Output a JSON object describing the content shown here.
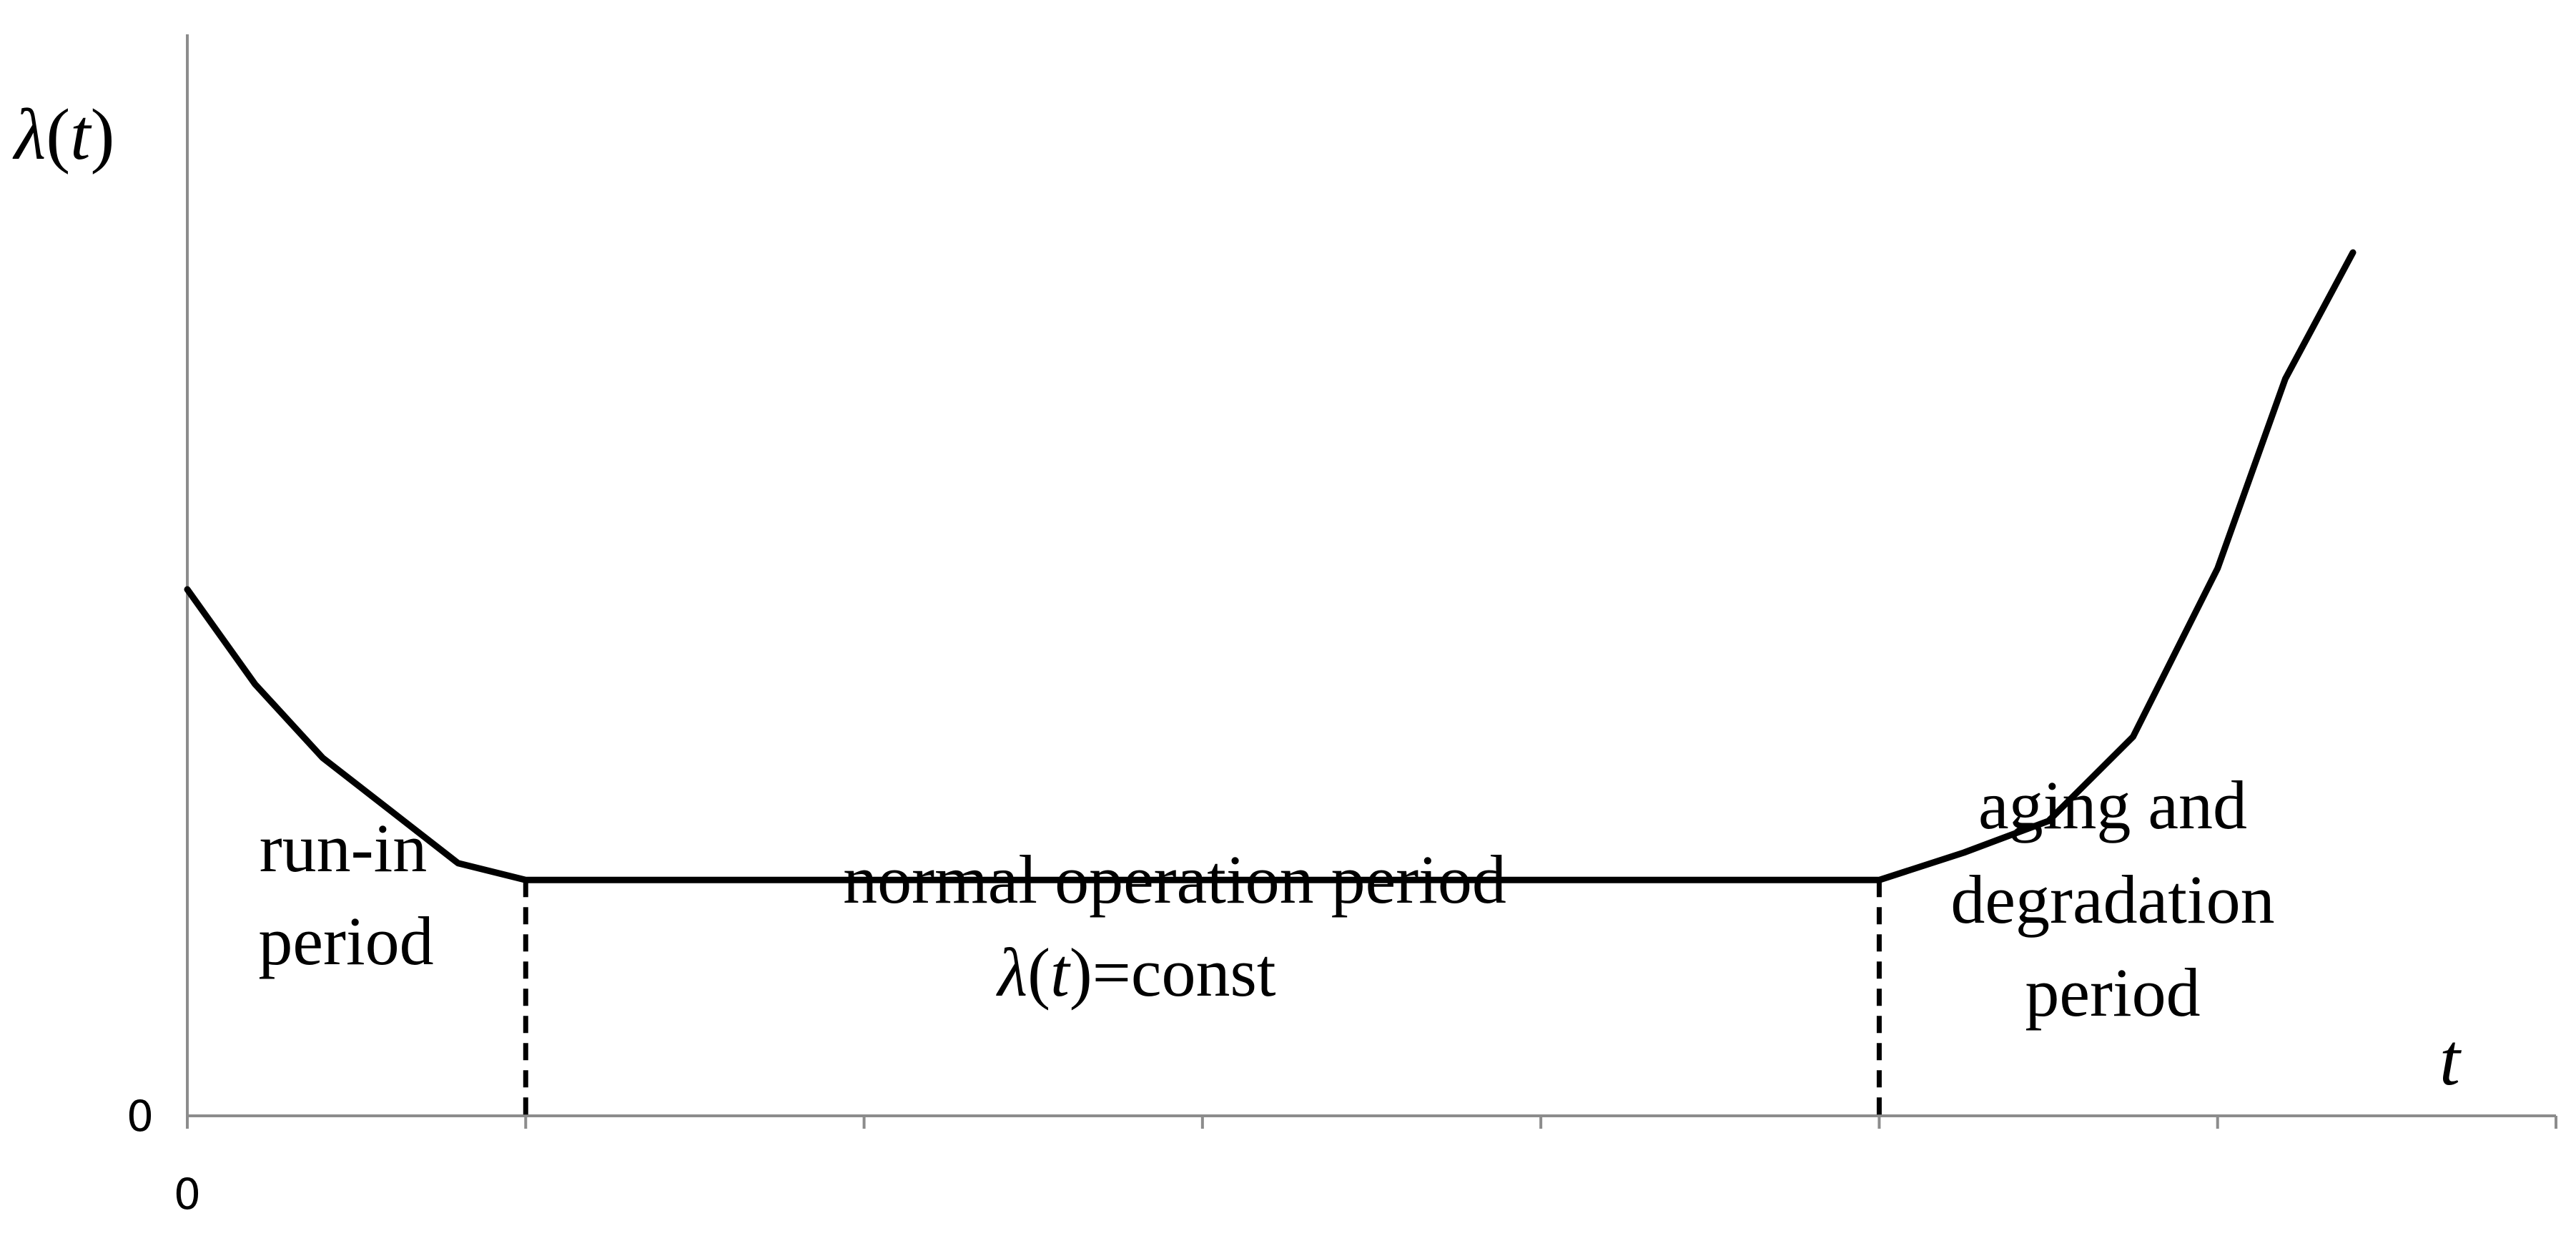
{
  "chart_data": {
    "type": "line",
    "title": "",
    "ylabel_symbol": "λ",
    "ylabel_paren_open": "(",
    "ylabel_var": "t",
    "ylabel_paren_close": ")",
    "xlabel": "t",
    "y_tick_labels": [
      "0"
    ],
    "x_tick_labels": [
      "0"
    ],
    "grid": false,
    "legend": "none",
    "xlim": [
      0,
      7
    ],
    "ylim": [
      0,
      1
    ],
    "series": [
      {
        "x": [
          0,
          0.2,
          0.4,
          0.6,
          0.8,
          1.0,
          2.0,
          3.0,
          4.0,
          5.0,
          5.25,
          5.5,
          5.75,
          6.0,
          6.2,
          6.4
        ],
        "y": [
          0.5,
          0.41,
          0.34,
          0.29,
          0.24,
          0.224,
          0.224,
          0.224,
          0.224,
          0.224,
          0.25,
          0.28,
          0.36,
          0.52,
          0.7,
          0.82
        ],
        "color": "#000000"
      }
    ],
    "boundaries": [
      1.0,
      5.0
    ],
    "annotations": {
      "run_in": {
        "line1": "run-in",
        "line2": "period"
      },
      "normal": {
        "line1": "normal operation period",
        "symbol": "λ",
        "paren_open": "(",
        "var": "t",
        "suffix": ")=const"
      },
      "aging": {
        "line1": "aging and",
        "line2": "degradation",
        "line3": "period"
      }
    }
  }
}
